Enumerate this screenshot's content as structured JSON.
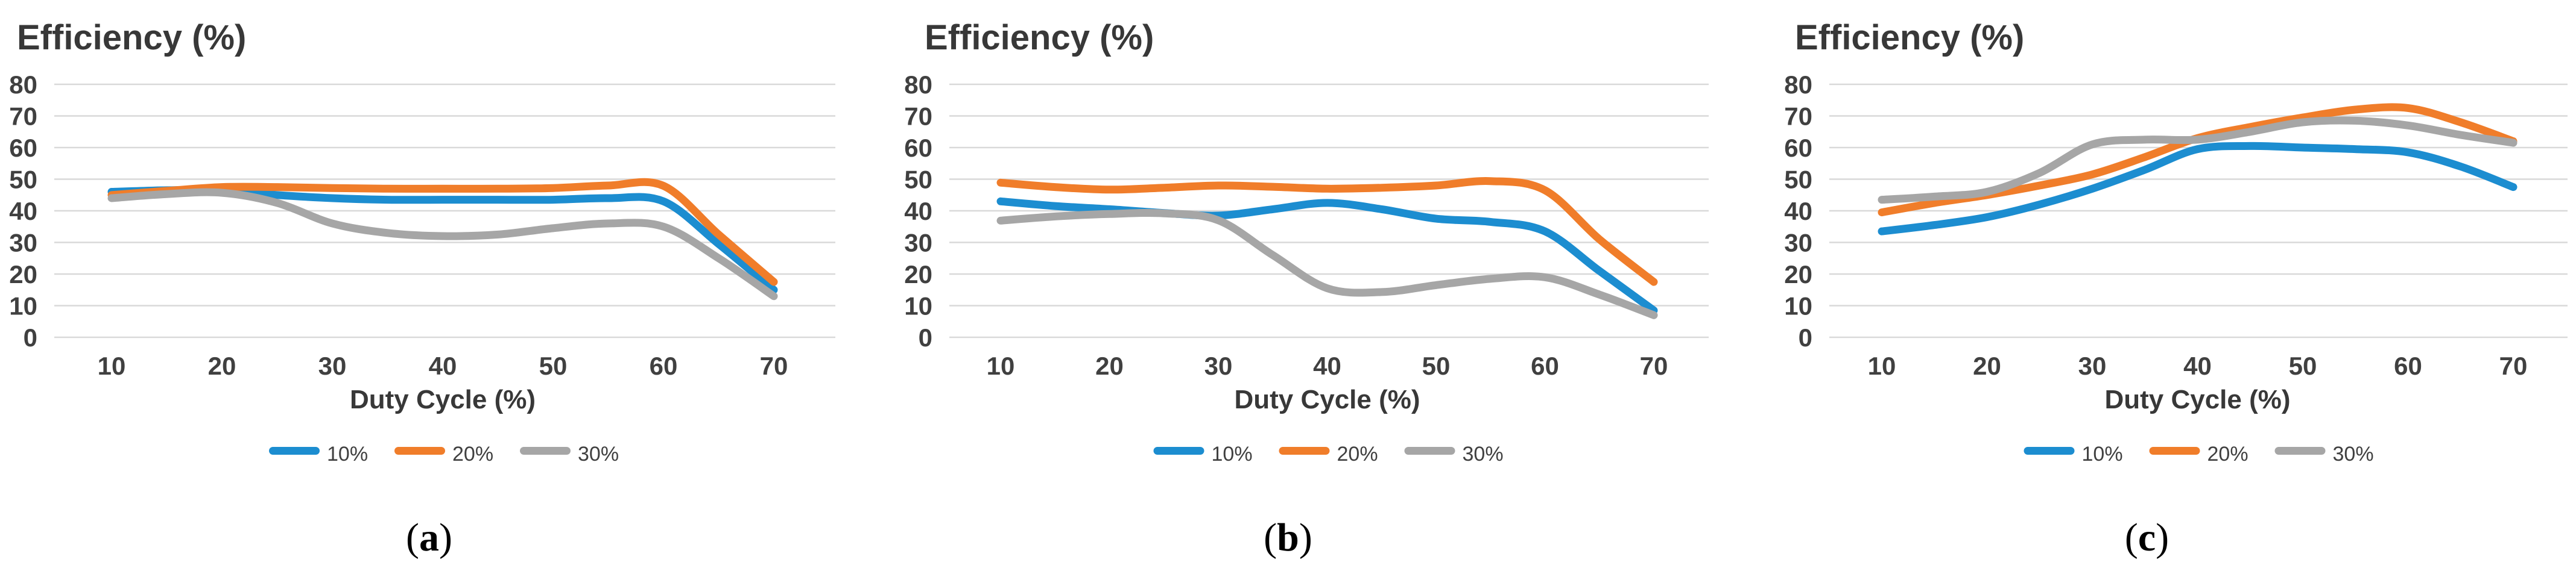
{
  "figure": {
    "description_title": "Efficiency (%)"
  },
  "colors": {
    "grid": "#D9D9D9",
    "tick_text": "#404040",
    "title_text": "#383838",
    "series_blue": "#1C8DD0",
    "series_orange": "#F07D2A",
    "series_gray": "#A6A6A6"
  },
  "chart_data": [
    {
      "type": "line",
      "title": "Efficiency (%)",
      "xlabel": "Duty Cycle (%)",
      "ylabel": "Efficiency (%)",
      "caption": {
        "open": "(",
        "letter": "a",
        "close": ")"
      },
      "ylim": [
        0,
        80
      ],
      "yticks": [
        0,
        10,
        20,
        30,
        40,
        50,
        60,
        70,
        80
      ],
      "xticks": [
        10,
        20,
        30,
        40,
        50,
        60,
        70
      ],
      "grid": true,
      "legend_position": "bottom",
      "x": [
        10,
        15,
        20,
        25,
        30,
        35,
        40,
        45,
        50,
        55,
        60,
        65,
        70
      ],
      "series": [
        {
          "name": "10%",
          "color": "#1C8DD0",
          "values": [
            46,
            46.5,
            46.5,
            45,
            44,
            43.5,
            43.5,
            43.5,
            43.5,
            44,
            43,
            29.5,
            15
          ]
        },
        {
          "name": "20%",
          "color": "#F07D2A",
          "values": [
            45,
            46.3,
            47.5,
            47.5,
            47.2,
            47,
            47,
            47,
            47.2,
            48,
            47.9,
            32.5,
            17.5
          ]
        },
        {
          "name": "30%",
          "color": "#A6A6A6",
          "values": [
            44,
            45.3,
            45.7,
            42.5,
            36,
            33,
            32,
            32.5,
            34.5,
            36,
            35,
            25,
            13
          ]
        }
      ]
    },
    {
      "type": "line",
      "title": "Efficiency (%)",
      "xlabel": "Duty Cycle (%)",
      "ylabel": "Efficiency (%)",
      "caption": {
        "open": "(",
        "letter": "b",
        "close": ")"
      },
      "ylim": [
        0,
        80
      ],
      "yticks": [
        0,
        10,
        20,
        30,
        40,
        50,
        60,
        70,
        80
      ],
      "xticks": [
        10,
        20,
        30,
        40,
        50,
        60,
        70
      ],
      "grid": true,
      "legend_position": "bottom",
      "x": [
        10,
        15,
        20,
        25,
        30,
        35,
        40,
        45,
        50,
        55,
        60,
        65,
        70
      ],
      "series": [
        {
          "name": "10%",
          "color": "#1C8DD0",
          "values": [
            43,
            41.5,
            40.5,
            39.3,
            38.5,
            40.5,
            42.5,
            40.5,
            37.5,
            36.5,
            33.5,
            21,
            8.5
          ]
        },
        {
          "name": "20%",
          "color": "#F07D2A",
          "values": [
            48.9,
            47.5,
            46.7,
            47.3,
            48,
            47.6,
            47,
            47.3,
            48,
            49.4,
            46.5,
            31,
            17.5
          ]
        },
        {
          "name": "30%",
          "color": "#A6A6A6",
          "values": [
            36.9,
            38.2,
            39,
            39.2,
            37,
            26,
            15.5,
            14.3,
            16.5,
            18.5,
            19,
            13.5,
            7
          ]
        }
      ]
    },
    {
      "type": "line",
      "title": "Efficiency (%)",
      "xlabel": "Duty Cycle (%)",
      "ylabel": "Efficiency (%)",
      "caption": {
        "open": "(",
        "letter": "c",
        "close": ")"
      },
      "ylim": [
        0,
        80
      ],
      "yticks": [
        0,
        10,
        20,
        30,
        40,
        50,
        60,
        70,
        80
      ],
      "xticks": [
        10,
        20,
        30,
        40,
        50,
        60,
        70
      ],
      "grid": true,
      "legend_position": "bottom",
      "x": [
        10,
        15,
        20,
        25,
        30,
        35,
        40,
        45,
        50,
        55,
        60,
        65,
        70
      ],
      "series": [
        {
          "name": "10%",
          "color": "#1C8DD0",
          "values": [
            33.5,
            35.5,
            38,
            42,
            47,
            53,
            59.5,
            60.5,
            60,
            59.5,
            58.5,
            54,
            47.5
          ]
        },
        {
          "name": "20%",
          "color": "#F07D2A",
          "values": [
            39.5,
            42.5,
            45,
            48,
            51.5,
            57,
            63,
            66.5,
            69.5,
            72,
            72.5,
            68,
            62
          ]
        },
        {
          "name": "30%",
          "color": "#A6A6A6",
          "values": [
            43.5,
            44.5,
            46,
            52,
            61,
            62.5,
            62.5,
            65,
            68,
            68.5,
            67,
            64,
            61.5
          ]
        }
      ]
    }
  ]
}
